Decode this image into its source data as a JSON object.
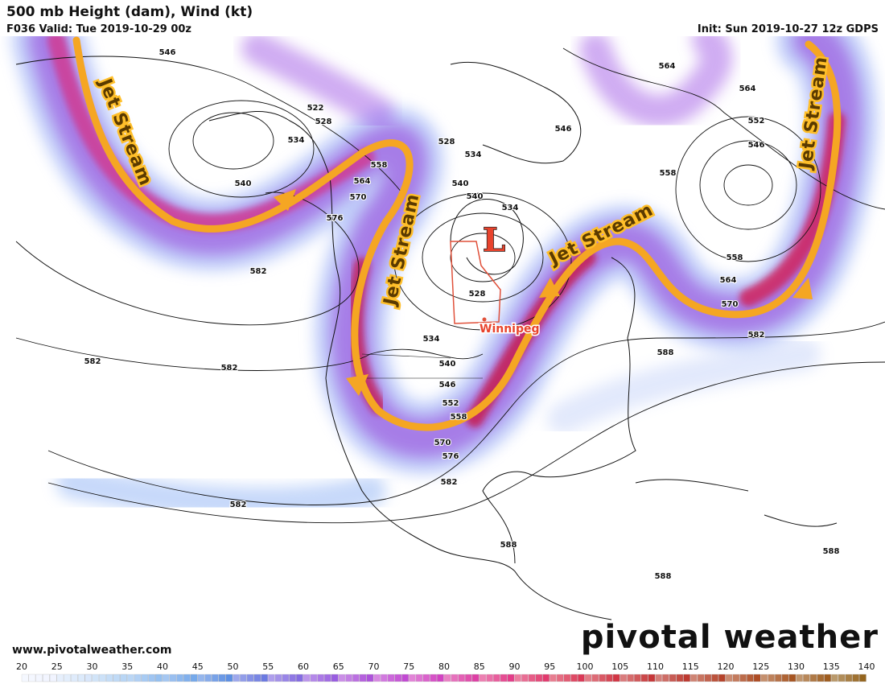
{
  "header": {
    "title": "500 mb Height (dam), Wind (kt)",
    "valid": "F036 Valid: Tue 2019-10-29 00z",
    "init": "Init: Sun 2019-10-27 12z GDPS"
  },
  "annotations": {
    "jet_stream": [
      "Jet Stream",
      "Jet Stream",
      "Jet Stream",
      "Jet Stream"
    ],
    "low": "L",
    "city": "Winnipeg"
  },
  "contour_labels": [
    "546",
    "522",
    "528",
    "534",
    "540",
    "558",
    "564",
    "570",
    "576",
    "528",
    "534",
    "540",
    "540",
    "534",
    "546",
    "564",
    "564",
    "552",
    "546",
    "558",
    "558",
    "564",
    "570",
    "582",
    "588",
    "582",
    "582",
    "582",
    "582",
    "582",
    "534",
    "528",
    "540",
    "546",
    "552",
    "558",
    "570",
    "576",
    "588",
    "588",
    "588"
  ],
  "footer": {
    "url": "www.pivotalweather.com",
    "brand": "pivotal weather"
  },
  "colorbar": {
    "ticks": [
      20,
      25,
      30,
      35,
      40,
      45,
      50,
      55,
      60,
      65,
      70,
      75,
      80,
      85,
      90,
      95,
      100,
      105,
      110,
      115,
      120,
      125,
      130,
      135,
      140
    ]
  }
}
